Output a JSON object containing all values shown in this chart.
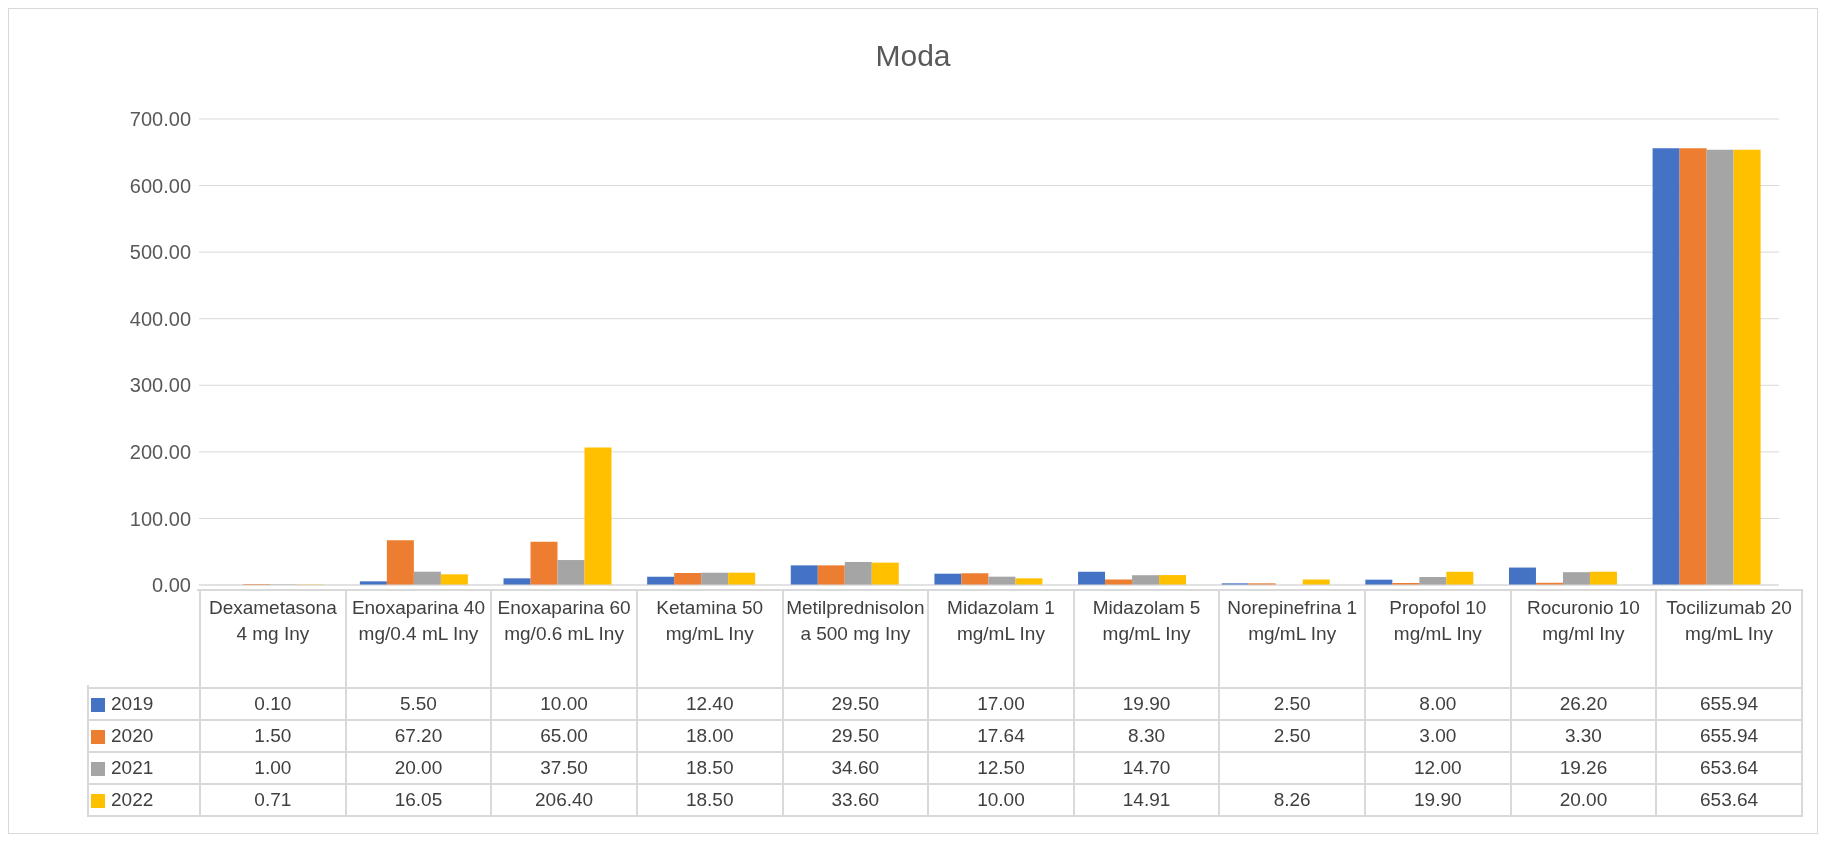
{
  "chart_data": {
    "type": "bar",
    "title": "Moda",
    "categories": [
      "Dexametasona 4 mg Iny",
      "Enoxaparina 40 mg/0.4 mL Iny",
      "Enoxaparina 60 mg/0.6 mL Iny",
      "Ketamina 50 mg/mL Iny",
      "Metilprednisolona 500 mg Iny",
      "Midazolam 1 mg/mL Iny",
      "Midazolam 5 mg/mL Iny",
      "Norepinefrina 1 mg/mL Iny",
      "Propofol 10 mg/mL Iny",
      "Rocuronio 10 mg/ml Iny",
      "Tocilizumab 20 mg/mL Iny"
    ],
    "series": [
      {
        "name": "2019",
        "color": "#4472c4",
        "values": [
          0.1,
          5.5,
          10.0,
          12.4,
          29.5,
          17.0,
          19.9,
          2.5,
          8.0,
          26.2,
          655.94
        ],
        "value_labels": [
          "0.10",
          "5.50",
          "10.00",
          "12.40",
          "29.50",
          "17.00",
          "19.90",
          "2.50",
          "8.00",
          "26.20",
          "655.94"
        ]
      },
      {
        "name": "2020",
        "color": "#ed7d31",
        "values": [
          1.5,
          67.2,
          65.0,
          18.0,
          29.5,
          17.64,
          8.3,
          2.5,
          3.0,
          3.3,
          655.94
        ],
        "value_labels": [
          "1.50",
          "67.20",
          "65.00",
          "18.00",
          "29.50",
          "17.64",
          "8.30",
          "2.50",
          "3.00",
          "3.30",
          "655.94"
        ]
      },
      {
        "name": "2021",
        "color": "#a5a5a5",
        "values": [
          1.0,
          20.0,
          37.5,
          18.5,
          34.6,
          12.5,
          14.7,
          null,
          12.0,
          19.26,
          653.64
        ],
        "value_labels": [
          "1.00",
          "20.00",
          "37.50",
          "18.50",
          "34.60",
          "12.50",
          "14.70",
          null,
          "12.00",
          "19.26",
          "653.64"
        ]
      },
      {
        "name": "2022",
        "color": "#ffc000",
        "values": [
          0.71,
          16.05,
          206.4,
          18.5,
          33.6,
          10.0,
          14.91,
          8.26,
          19.9,
          20.0,
          653.64
        ],
        "value_labels": [
          "0.71",
          "16.05",
          "206.40",
          "18.50",
          "33.60",
          "10.00",
          "14.91",
          "8.26",
          "19.90",
          "20.00",
          "653.64"
        ]
      }
    ],
    "ylim": [
      0,
      700
    ],
    "yticks": [
      {
        "value": 0,
        "label": "0.00"
      },
      {
        "value": 100,
        "label": "100.00"
      },
      {
        "value": 200,
        "label": "200.00"
      },
      {
        "value": 300,
        "label": "300.00"
      },
      {
        "value": 400,
        "label": "400.00"
      },
      {
        "value": 500,
        "label": "500.00"
      },
      {
        "value": 600,
        "label": "600.00"
      },
      {
        "value": 700,
        "label": "700.00"
      }
    ],
    "grid": "y",
    "legend": "bottom"
  }
}
